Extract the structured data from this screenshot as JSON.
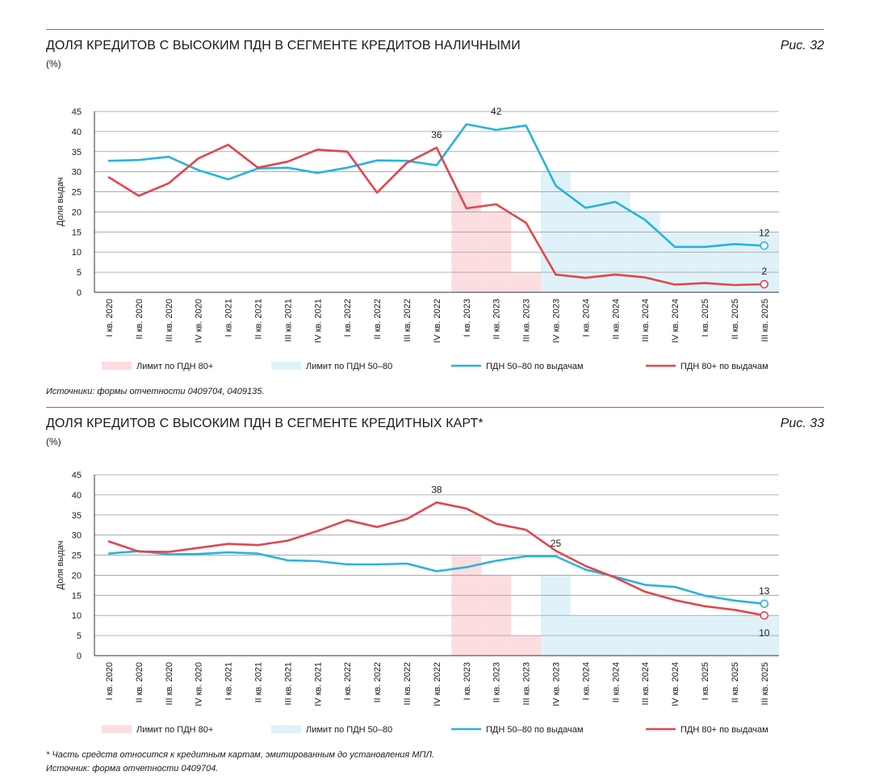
{
  "figures": [
    {
      "title": "ДОЛЯ КРЕДИТОВ С ВЫСОКИМ ПДН В СЕГМЕНТЕ КРЕДИТОВ НАЛИЧНЫМИ",
      "unit": "(%)",
      "fig_label": "Рис. 32",
      "source": "Источники: формы отчетности 0409704, 0409135."
    },
    {
      "title": "ДОЛЯ КРЕДИТОВ С ВЫСОКИМ ПДН В СЕГМЕНТЕ КРЕДИТНЫХ КАРТ*",
      "unit": "(%)",
      "fig_label": "Рис. 33",
      "footnote": "*   Часть средств относится к кредитным картам, эмитированным до установления МПЛ.",
      "source": "Источник: форма отчетности 0409704."
    }
  ],
  "colors": {
    "rule": "#e0474c",
    "pdn80": "#e0474c",
    "pdn5080": "#29b3dd",
    "limit80_fill": "#fcdde0",
    "limit5080_fill": "#dff2fa",
    "grid": "#9c9c9c"
  },
  "chart_data": [
    {
      "type": "line",
      "ylabel": "Доля выдач",
      "ylim": [
        0,
        45
      ],
      "yticks": [
        0,
        5,
        10,
        15,
        20,
        25,
        30,
        35,
        40,
        45
      ],
      "grid": true,
      "legend_position": "bottom",
      "categories": [
        "I кв. 2020",
        "II кв. 2020",
        "III кв. 2020",
        "IV кв. 2020",
        "I кв. 2021",
        "II кв. 2021",
        "III кв. 2021",
        "IV кв. 2021",
        "I кв. 2022",
        "II кв. 2022",
        "III кв. 2022",
        "IV кв. 2022",
        "I кв. 2023",
        "II кв. 2023",
        "III кв. 2023",
        "IV кв. 2023",
        "I кв. 2024",
        "II кв. 2024",
        "III кв. 2024",
        "IV кв. 2024",
        "I кв. 2025",
        "II кв. 2025",
        "III кв. 2025"
      ],
      "series": [
        {
          "name": "ПДН 50–80 по выдачам",
          "values": [
            32.7,
            32.9,
            33.7,
            30.4,
            28.1,
            30.8,
            31.0,
            29.7,
            31.0,
            32.8,
            32.7,
            31.6,
            41.8,
            40.4,
            41.5,
            26.5,
            21.0,
            22.5,
            18.0,
            11.3,
            11.3,
            12.0,
            11.6
          ]
        },
        {
          "name": "ПДН 80+ по выдачам",
          "values": [
            28.6,
            24.0,
            27.1,
            33.3,
            36.7,
            31.0,
            32.5,
            35.5,
            35.0,
            24.8,
            32.2,
            36.0,
            20.9,
            21.9,
            17.3,
            4.4,
            3.6,
            4.4,
            3.7,
            1.9,
            2.3,
            1.8,
            2.0
          ]
        }
      ],
      "limits": [
        {
          "name": "Лимит по ПДН 80+",
          "values": [
            null,
            null,
            null,
            null,
            null,
            null,
            null,
            null,
            null,
            null,
            null,
            null,
            25,
            20,
            5,
            5,
            5,
            5,
            5,
            3,
            3,
            3,
            3
          ]
        },
        {
          "name": "Лимит по ПДН 50–80",
          "values": [
            null,
            null,
            null,
            null,
            null,
            null,
            null,
            null,
            null,
            null,
            null,
            null,
            null,
            null,
            null,
            30,
            25,
            25,
            20,
            15,
            15,
            15,
            15
          ]
        }
      ],
      "annotations": [
        {
          "text": "36",
          "x": "IV кв. 2022",
          "y": 36
        },
        {
          "text": "42",
          "x": "II кв. 2023",
          "y": 41.8
        },
        {
          "text": "12",
          "x": "III кв. 2025",
          "y": 11.6
        },
        {
          "text": "2",
          "x": "III кв. 2025",
          "y": 2.0
        }
      ]
    },
    {
      "type": "line",
      "ylabel": "Доля выдач",
      "ylim": [
        0,
        45
      ],
      "yticks": [
        0,
        5,
        10,
        15,
        20,
        25,
        30,
        35,
        40,
        45
      ],
      "grid": true,
      "legend_position": "bottom",
      "categories": [
        "I кв. 2020",
        "II кв. 2020",
        "III кв. 2020",
        "IV кв. 2020",
        "I кв. 2021",
        "II кв. 2021",
        "III кв. 2021",
        "IV кв. 2021",
        "I кв. 2022",
        "II кв. 2022",
        "III кв. 2022",
        "IV кв. 2022",
        "I кв. 2023",
        "II кв. 2023",
        "III кв. 2023",
        "IV кв. 2023",
        "I кв. 2024",
        "II кв. 2024",
        "III кв. 2024",
        "IV кв. 2024",
        "I кв. 2025",
        "II кв. 2025",
        "III кв. 2025"
      ],
      "series": [
        {
          "name": "ПДН 50–80 по выдачам",
          "values": [
            25.4,
            26.0,
            25.2,
            25.3,
            25.7,
            25.4,
            23.7,
            23.5,
            22.7,
            22.7,
            22.9,
            21.0,
            22.0,
            23.6,
            24.7,
            24.7,
            21.4,
            19.6,
            17.6,
            17.1,
            14.9,
            13.7,
            12.9
          ]
        },
        {
          "name": "ПДН 80+ по выдачам",
          "values": [
            28.4,
            25.9,
            25.8,
            26.8,
            27.8,
            27.5,
            28.6,
            31.0,
            33.7,
            32.0,
            34.0,
            38.1,
            36.6,
            32.8,
            31.3,
            26.1,
            22.3,
            19.4,
            15.9,
            13.8,
            12.3,
            11.4,
            10.0
          ]
        }
      ],
      "limits": [
        {
          "name": "Лимит по ПДН 80+",
          "values": [
            null,
            null,
            null,
            null,
            null,
            null,
            null,
            null,
            null,
            null,
            null,
            null,
            25,
            20,
            5,
            5,
            5,
            null,
            null,
            null,
            null,
            null,
            null
          ]
        },
        {
          "name": "Лимит по ПДН 50–80",
          "values": [
            null,
            null,
            null,
            null,
            null,
            null,
            null,
            null,
            null,
            null,
            null,
            null,
            null,
            null,
            null,
            20,
            10,
            10,
            10,
            10,
            10,
            10,
            10
          ]
        }
      ],
      "annotations": [
        {
          "text": "38",
          "x": "IV кв. 2022",
          "y": 38.1
        },
        {
          "text": "25",
          "x": "IV кв. 2023",
          "y": 24.7
        },
        {
          "text": "13",
          "x": "III кв. 2025",
          "y": 12.9
        },
        {
          "text": "10",
          "x": "III кв. 2025",
          "y": 10.0
        }
      ]
    }
  ]
}
